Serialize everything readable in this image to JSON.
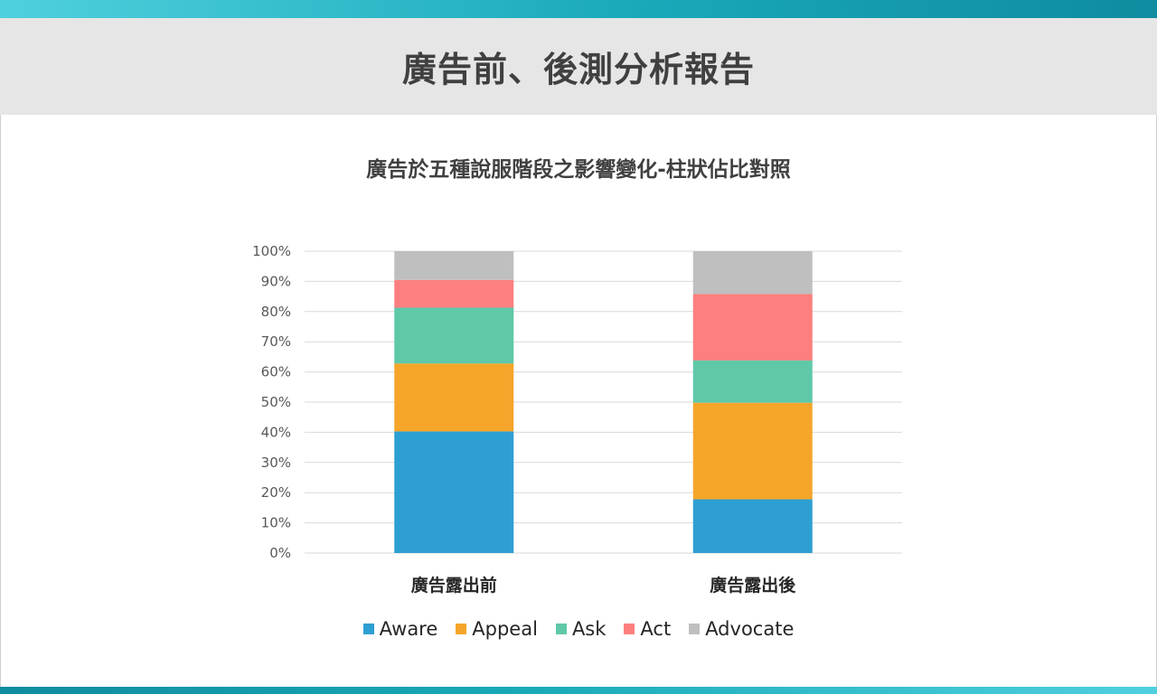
{
  "page": {
    "title": "廣告前、後測分析報告"
  },
  "colors": {
    "accent_top": "#19a9b9",
    "header_bg": "#e6e6e6"
  },
  "chart_data": {
    "type": "bar",
    "stacked": true,
    "title": "廣告於五種說服階段之影響變化-柱狀佔比對照",
    "xlabel": "",
    "ylabel": "",
    "categories": [
      "廣告露出前",
      "廣告露出後"
    ],
    "ylim": [
      0,
      100
    ],
    "yticks": [
      "0%",
      "10%",
      "20%",
      "30%",
      "40%",
      "50%",
      "60%",
      "70%",
      "80%",
      "90%",
      "100%"
    ],
    "grid": true,
    "legend_position": "bottom",
    "series": [
      {
        "name": "Aware",
        "color": "#2e9fd2",
        "values": [
          40.3,
          17.8
        ]
      },
      {
        "name": "Appeal",
        "color": "#f5a52a",
        "values": [
          22.5,
          32.0
        ]
      },
      {
        "name": "Ask",
        "color": "#5fc8a8",
        "values": [
          18.5,
          14.0
        ]
      },
      {
        "name": "Act",
        "color": "#fd7f7f",
        "values": [
          9.2,
          22.0
        ]
      },
      {
        "name": "Advocate",
        "color": "#bfbfbf",
        "values": [
          9.5,
          14.2
        ]
      }
    ]
  }
}
